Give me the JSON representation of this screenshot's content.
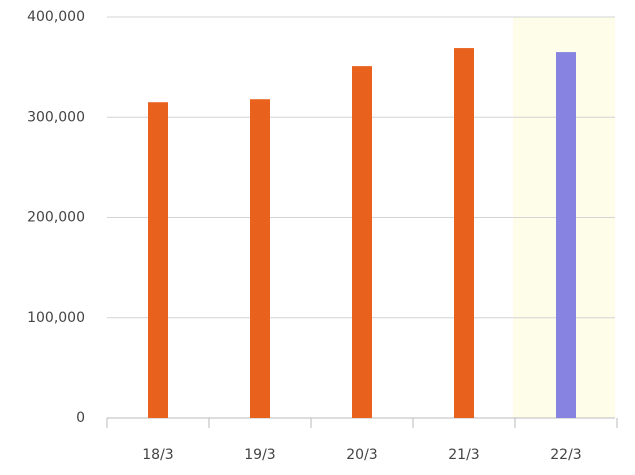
{
  "chart_data": {
    "type": "bar",
    "categories": [
      "18/3",
      "19/3",
      "20/3",
      "21/3",
      "22/3"
    ],
    "values": [
      315000,
      318000,
      351000,
      369000,
      365000
    ],
    "colors": [
      "#e8621e",
      "#e8621e",
      "#e8621e",
      "#e8621e",
      "#8783e0"
    ],
    "highlight_index": 4,
    "highlight_color": "#fdfde9",
    "ylim": [
      0,
      400000
    ],
    "yticks": [
      0,
      {
        "value": 100000,
        "label": "100,000"
      },
      {
        "value": 200000,
        "label": "200,000"
      },
      {
        "value": 300000,
        "label": "300,000"
      },
      {
        "value": 400000,
        "label": "400,000"
      }
    ],
    "grid": true
  }
}
